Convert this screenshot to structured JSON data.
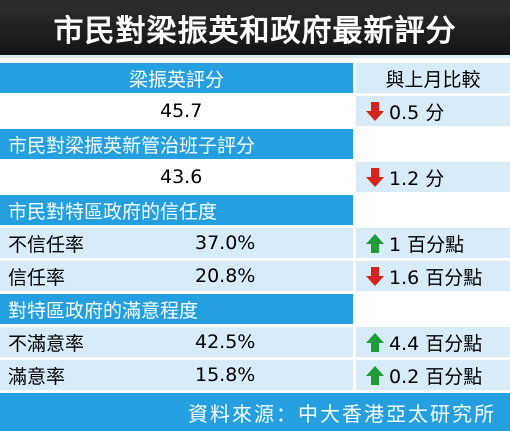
{
  "title": "市民對梁振英和政府最新評分",
  "header": {
    "section": "梁振英評分",
    "compare": "與上月比較"
  },
  "rows": {
    "leung_score": {
      "value": "45.7",
      "change": "0.5 分",
      "direction": "down"
    },
    "governing_team_label": "市民對梁振英新管治班子評分",
    "team_score": {
      "value": "43.6",
      "change": "1.2 分",
      "direction": "down"
    },
    "trust_label": "市民對特區政府的信任度",
    "distrust": {
      "label": "不信任率",
      "value": "37.0%",
      "change": "1 百分點",
      "direction": "up"
    },
    "trust": {
      "label": "信任率",
      "value": "20.8%",
      "change": "1.6 百分點",
      "direction": "down"
    },
    "satisfaction_label": "對特區政府的滿意程度",
    "dissatisfied": {
      "label": "不滿意率",
      "value": "42.5%",
      "change": "4.4 百分點",
      "direction": "up"
    },
    "satisfied": {
      "label": "滿意率",
      "value": "15.8%",
      "change": "0.2 百分點",
      "direction": "up"
    }
  },
  "source": "資料來源：中大香港亞太研究所",
  "colors": {
    "header_bg": "#24a0e0",
    "row_bg": "#d7ecf8",
    "title_bg": "#1e1e1e",
    "down_arrow": "#d6231b",
    "up_arrow": "#1f9b3a"
  }
}
